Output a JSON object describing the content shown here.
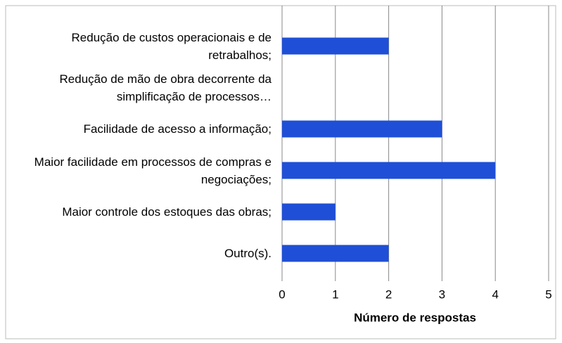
{
  "chart_data": {
    "type": "barh",
    "categories": [
      "Redução de custos operacionais e de retrabalhos;",
      "Redução de mão de obra decorrente da simplificação de processos…",
      "Facilidade de acesso a informação;",
      "Maior facilidade em processos de compras e negociações;",
      "Maior controle dos estoques das obras;",
      "Outro(s)."
    ],
    "values": [
      2,
      0,
      3,
      4,
      1,
      2
    ],
    "color": "#1f4fd6",
    "xlabel": "Número de respostas",
    "xlim": [
      0,
      5
    ],
    "xticks": [
      0,
      1,
      2,
      3,
      4,
      5
    ],
    "grid": true
  }
}
